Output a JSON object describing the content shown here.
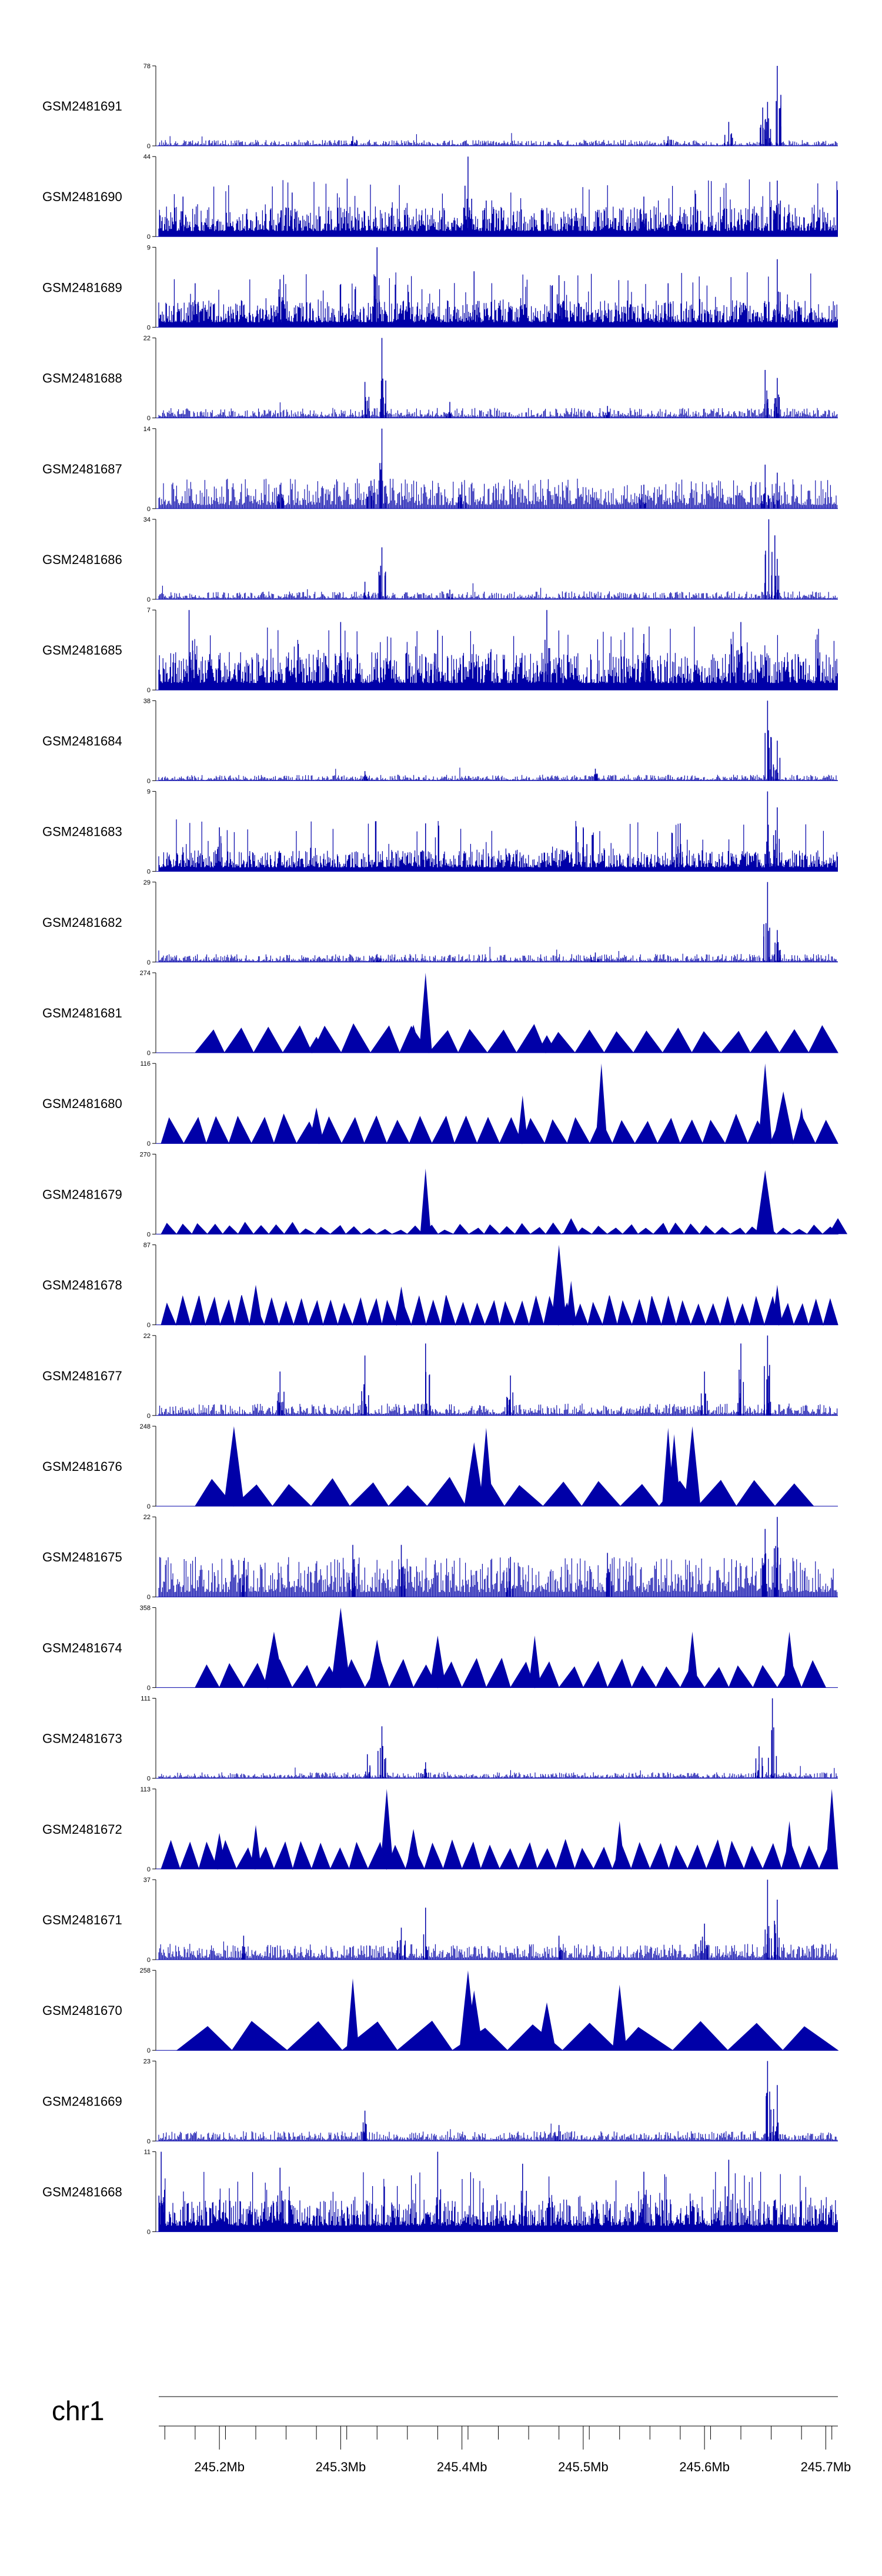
{
  "chart_data": {
    "type": "genome-track-bar",
    "chromosome": "chr1",
    "x_range_mb": [
      245.15,
      245.71
    ],
    "x_ticks": [
      {
        "value": 245.2,
        "label": "245.2Mb"
      },
      {
        "value": 245.3,
        "label": "245.3Mb"
      },
      {
        "value": 245.4,
        "label": "245.4Mb"
      },
      {
        "value": 245.5,
        "label": "245.5Mb"
      },
      {
        "value": 245.6,
        "label": "245.6Mb"
      },
      {
        "value": 245.7,
        "label": "245.7Mb"
      }
    ],
    "series_color": "#0000a8",
    "tracks": [
      {
        "name": "GSM2481691",
        "ymax": "78",
        "ymax_value": 78,
        "style": "bars",
        "baseline": 0.03,
        "peaks": [
          [
            245.66,
            1.0
          ],
          [
            245.652,
            0.55
          ],
          [
            245.648,
            0.48
          ],
          [
            245.62,
            0.3
          ],
          [
            245.57,
            0.12
          ],
          [
            245.31,
            0.12
          ]
        ]
      },
      {
        "name": "GSM2481690",
        "ymax": "44",
        "ymax_value": 44,
        "style": "dense",
        "baseline": 0.28,
        "peaks": [
          [
            245.405,
            1.0
          ],
          [
            245.66,
            0.7
          ],
          [
            245.26,
            0.55
          ],
          [
            245.17,
            0.5
          ],
          [
            245.42,
            0.45
          ],
          [
            245.55,
            0.5
          ]
        ]
      },
      {
        "name": "GSM2481689",
        "ymax": "9",
        "ymax_value": 9,
        "style": "dense",
        "baseline": 0.25,
        "peaks": [
          [
            245.33,
            1.0
          ],
          [
            245.66,
            0.85
          ],
          [
            245.25,
            0.6
          ],
          [
            245.18,
            0.55
          ],
          [
            245.48,
            0.65
          ],
          [
            245.41,
            0.7
          ],
          [
            245.57,
            0.55
          ]
        ]
      },
      {
        "name": "GSM2481688",
        "ymax": "22",
        "ymax_value": 22,
        "style": "bars",
        "baseline": 0.05,
        "peaks": [
          [
            245.334,
            1.0
          ],
          [
            245.32,
            0.45
          ],
          [
            245.65,
            0.6
          ],
          [
            245.66,
            0.5
          ],
          [
            245.39,
            0.2
          ],
          [
            245.52,
            0.15
          ]
        ]
      },
      {
        "name": "GSM2481687",
        "ymax": "14",
        "ymax_value": 14,
        "style": "bars",
        "baseline": 0.15,
        "peaks": [
          [
            245.334,
            1.0
          ],
          [
            245.325,
            0.35
          ],
          [
            245.65,
            0.55
          ],
          [
            245.66,
            0.45
          ],
          [
            245.4,
            0.3
          ],
          [
            245.25,
            0.3
          ],
          [
            245.55,
            0.3
          ]
        ]
      },
      {
        "name": "GSM2481686",
        "ymax": "34",
        "ymax_value": 34,
        "style": "bars",
        "baseline": 0.04,
        "peaks": [
          [
            245.653,
            1.0
          ],
          [
            245.658,
            0.8
          ],
          [
            245.334,
            0.65
          ],
          [
            245.32,
            0.22
          ],
          [
            245.39,
            0.12
          ]
        ]
      },
      {
        "name": "GSM2481685",
        "ymax": "7",
        "ymax_value": 7,
        "style": "dense",
        "baseline": 0.35,
        "peaks": [
          [
            245.175,
            1.0
          ],
          [
            245.47,
            1.0
          ],
          [
            245.3,
            0.85
          ],
          [
            245.63,
            0.85
          ],
          [
            245.38,
            0.75
          ],
          [
            245.55,
            0.7
          ]
        ]
      },
      {
        "name": "GSM2481684",
        "ymax": "38",
        "ymax_value": 38,
        "style": "bars",
        "baseline": 0.03,
        "peaks": [
          [
            245.652,
            1.0
          ],
          [
            245.66,
            0.5
          ],
          [
            245.51,
            0.15
          ],
          [
            245.32,
            0.12
          ]
        ]
      },
      {
        "name": "GSM2481683",
        "ymax": "9",
        "ymax_value": 9,
        "style": "dense",
        "baseline": 0.2,
        "peaks": [
          [
            245.652,
            1.0
          ],
          [
            245.66,
            0.8
          ],
          [
            245.2,
            0.55
          ],
          [
            245.37,
            0.6
          ],
          [
            245.5,
            0.55
          ],
          [
            245.58,
            0.6
          ]
        ]
      },
      {
        "name": "GSM2481682",
        "ymax": "29",
        "ymax_value": 29,
        "style": "bars",
        "baseline": 0.04,
        "peaks": [
          [
            245.652,
            1.0
          ],
          [
            245.66,
            0.4
          ],
          [
            245.51,
            0.12
          ],
          [
            245.33,
            0.1
          ]
        ]
      },
      {
        "name": "GSM2481681",
        "ymax": "274",
        "ymax_value": 274,
        "style": "triangles",
        "start": 245.18,
        "end": 245.71,
        "segments": 22,
        "peaks": [
          [
            245.37,
            1.0
          ],
          [
            245.36,
            0.35
          ],
          [
            245.28,
            0.2
          ],
          [
            245.47,
            0.22
          ]
        ]
      },
      {
        "name": "GSM2481680",
        "ymax": "116",
        "ymax_value": 116,
        "style": "triangles",
        "start": 245.152,
        "end": 245.71,
        "segments": 30,
        "peaks": [
          [
            245.515,
            1.0
          ],
          [
            245.65,
            1.0
          ],
          [
            245.665,
            0.65
          ],
          [
            245.45,
            0.6
          ],
          [
            245.28,
            0.45
          ],
          [
            245.68,
            0.45
          ]
        ]
      },
      {
        "name": "GSM2481679",
        "ymax": "270",
        "ymax_value": 270,
        "style": "triangles",
        "start": 245.152,
        "end": 245.71,
        "segments": 44,
        "small": true,
        "peaks": [
          [
            245.37,
            0.82
          ],
          [
            245.65,
            0.8
          ],
          [
            245.49,
            0.2
          ],
          [
            245.71,
            0.2
          ]
        ]
      },
      {
        "name": "GSM2481678",
        "ymax": "87",
        "ymax_value": 87,
        "style": "triangles",
        "start": 245.152,
        "end": 245.71,
        "segments": 46,
        "peaks": [
          [
            245.48,
            1.0
          ],
          [
            245.49,
            0.55
          ],
          [
            245.23,
            0.5
          ],
          [
            245.35,
            0.48
          ],
          [
            245.66,
            0.5
          ]
        ]
      },
      {
        "name": "GSM2481677",
        "ymax": "22",
        "ymax_value": 22,
        "style": "bars",
        "baseline": 0.06,
        "peaks": [
          [
            245.652,
            1.0
          ],
          [
            245.63,
            0.9
          ],
          [
            245.37,
            0.9
          ],
          [
            245.32,
            0.75
          ],
          [
            245.6,
            0.55
          ],
          [
            245.44,
            0.5
          ],
          [
            245.25,
            0.55
          ]
        ]
      },
      {
        "name": "GSM2481676",
        "ymax": "248",
        "ymax_value": 248,
        "style": "triangles",
        "start": 245.18,
        "end": 245.69,
        "segments": 16,
        "peaks": [
          [
            245.212,
            1.0
          ],
          [
            245.59,
            1.0
          ],
          [
            245.57,
            0.98
          ],
          [
            245.42,
            0.98
          ],
          [
            245.41,
            0.8
          ],
          [
            245.575,
            0.9
          ]
        ]
      },
      {
        "name": "GSM2481675",
        "ymax": "22",
        "ymax_value": 22,
        "style": "bars",
        "baseline": 0.2,
        "peaks": [
          [
            245.66,
            1.0
          ],
          [
            245.65,
            0.85
          ],
          [
            245.35,
            0.65
          ],
          [
            245.31,
            0.65
          ],
          [
            245.52,
            0.55
          ],
          [
            245.22,
            0.45
          ],
          [
            245.44,
            0.5
          ]
        ]
      },
      {
        "name": "GSM2481674",
        "ymax": "358",
        "ymax_value": 358,
        "style": "triangles",
        "start": 245.18,
        "end": 245.7,
        "segments": 26,
        "peaks": [
          [
            245.3,
            1.0
          ],
          [
            245.245,
            0.7
          ],
          [
            245.33,
            0.6
          ],
          [
            245.38,
            0.65
          ],
          [
            245.59,
            0.7
          ],
          [
            245.67,
            0.7
          ],
          [
            245.46,
            0.65
          ]
        ]
      },
      {
        "name": "GSM2481673",
        "ymax": "111",
        "ymax_value": 111,
        "style": "bars",
        "baseline": 0.03,
        "peaks": [
          [
            245.656,
            1.0
          ],
          [
            245.645,
            0.4
          ],
          [
            245.334,
            0.65
          ],
          [
            245.322,
            0.3
          ],
          [
            245.37,
            0.2
          ]
        ]
      },
      {
        "name": "GSM2481672",
        "ymax": "113",
        "ymax_value": 113,
        "style": "triangles",
        "start": 245.152,
        "end": 245.71,
        "segments": 36,
        "peaks": [
          [
            245.338,
            1.0
          ],
          [
            245.705,
            1.0
          ],
          [
            245.67,
            0.6
          ],
          [
            245.53,
            0.6
          ],
          [
            245.23,
            0.55
          ],
          [
            245.2,
            0.45
          ],
          [
            245.36,
            0.5
          ]
        ]
      },
      {
        "name": "GSM2481671",
        "ymax": "37",
        "ymax_value": 37,
        "style": "bars",
        "baseline": 0.08,
        "peaks": [
          [
            245.652,
            1.0
          ],
          [
            245.66,
            0.75
          ],
          [
            245.37,
            0.65
          ],
          [
            245.35,
            0.4
          ],
          [
            245.6,
            0.45
          ],
          [
            245.48,
            0.3
          ],
          [
            245.22,
            0.3
          ]
        ]
      },
      {
        "name": "GSM2481670",
        "ymax": "258",
        "ymax_value": 258,
        "style": "triangles",
        "start": 245.165,
        "end": 245.71,
        "segments": 12,
        "peaks": [
          [
            245.405,
            1.0
          ],
          [
            245.41,
            0.75
          ],
          [
            245.31,
            0.9
          ],
          [
            245.53,
            0.82
          ],
          [
            245.47,
            0.6
          ]
        ]
      },
      {
        "name": "GSM2481669",
        "ymax": "23",
        "ymax_value": 23,
        "style": "bars",
        "baseline": 0.05,
        "peaks": [
          [
            245.652,
            1.0
          ],
          [
            245.66,
            0.7
          ],
          [
            245.32,
            0.38
          ],
          [
            245.48,
            0.2
          ]
        ]
      },
      {
        "name": "GSM2481668",
        "ymax": "11",
        "ymax_value": 11,
        "style": "dense",
        "baseline": 0.3,
        "peaks": [
          [
            245.152,
            1.0
          ],
          [
            245.38,
            1.0
          ],
          [
            245.62,
            0.9
          ],
          [
            245.45,
            0.85
          ],
          [
            245.25,
            0.8
          ],
          [
            245.55,
            0.75
          ]
        ]
      }
    ]
  }
}
